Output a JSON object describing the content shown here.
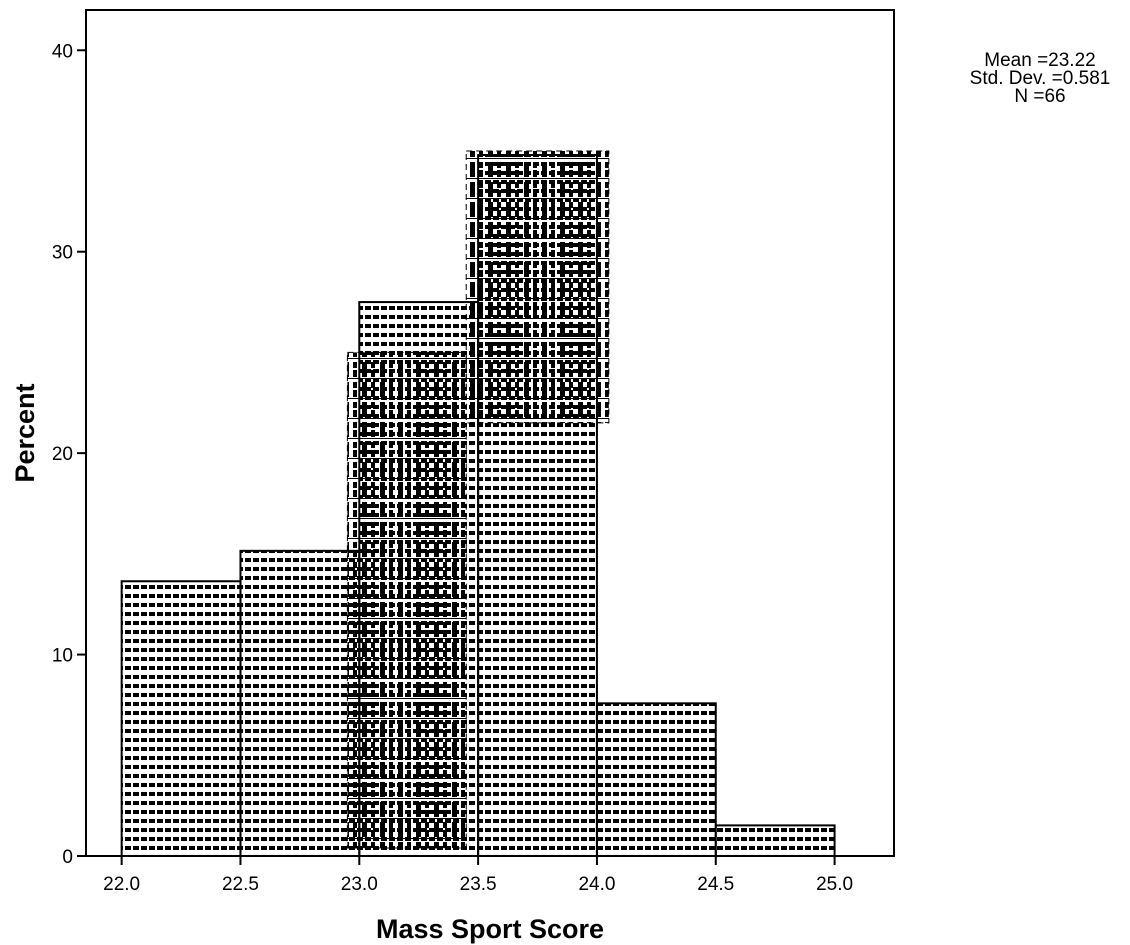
{
  "chart_data": {
    "type": "bar",
    "subtype": "histogram",
    "xlabel": "Mass Sport Score",
    "ylabel": "Percent",
    "xlim": [
      21.85,
      25.25
    ],
    "ylim": [
      0,
      42
    ],
    "x_ticks": [
      "22.0",
      "22.5",
      "23.0",
      "23.5",
      "24.0",
      "24.5",
      "25.0"
    ],
    "y_ticks": [
      "0",
      "10",
      "20",
      "30",
      "40"
    ],
    "grid": false,
    "bins": [
      {
        "x0": 22.0,
        "x1": 22.5,
        "value": 13.64,
        "pattern": "dots"
      },
      {
        "x0": 22.5,
        "x1": 23.0,
        "value": 15.15,
        "pattern": "dots"
      },
      {
        "x0": 23.0,
        "x1": 23.5,
        "value": 27.5,
        "pattern": "dots"
      },
      {
        "x0": 23.5,
        "x1": 24.0,
        "value": 34.8,
        "pattern": "dots"
      },
      {
        "x0": 24.0,
        "x1": 24.5,
        "value": 7.58,
        "pattern": "dots"
      },
      {
        "x0": 24.5,
        "x1": 25.0,
        "value": 1.52,
        "pattern": "dots"
      }
    ],
    "overlay_bars": [
      {
        "x0": 22.95,
        "x1": 23.45,
        "y0": 0.4,
        "y1": 25.0,
        "pattern": "dashes"
      },
      {
        "x0": 23.45,
        "x1": 24.05,
        "y0": 21.5,
        "y1": 35.0,
        "pattern": "dashes"
      }
    ],
    "stats": {
      "mean_label": "Mean =23.22",
      "sd_label": "Std. Dev. =0.581",
      "n_label": "N =66"
    }
  }
}
